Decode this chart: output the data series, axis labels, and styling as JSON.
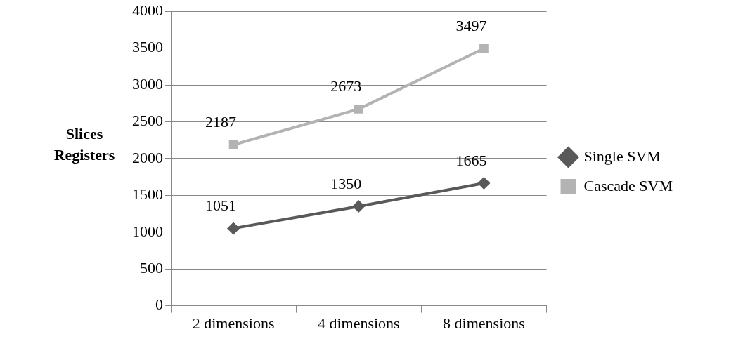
{
  "chart_data": {
    "type": "line",
    "ylabel": "Slices Registers",
    "categories": [
      "2 dimensions",
      "4 dimensions",
      "8 dimensions"
    ],
    "series": [
      {
        "name": "Single SVM",
        "color": "#595959",
        "marker": "diamond",
        "values": [
          1051,
          1350,
          1665
        ]
      },
      {
        "name": "Cascade SVM",
        "color": "#b3b3b3",
        "marker": "square",
        "values": [
          2187,
          2673,
          3497
        ]
      }
    ],
    "ylim": [
      0,
      4000
    ],
    "yticks": [
      0,
      500,
      1000,
      1500,
      2000,
      2500,
      3000,
      3500,
      4000
    ],
    "grid": "y",
    "legend": "right",
    "data_labels": true,
    "line_style": "solid"
  }
}
